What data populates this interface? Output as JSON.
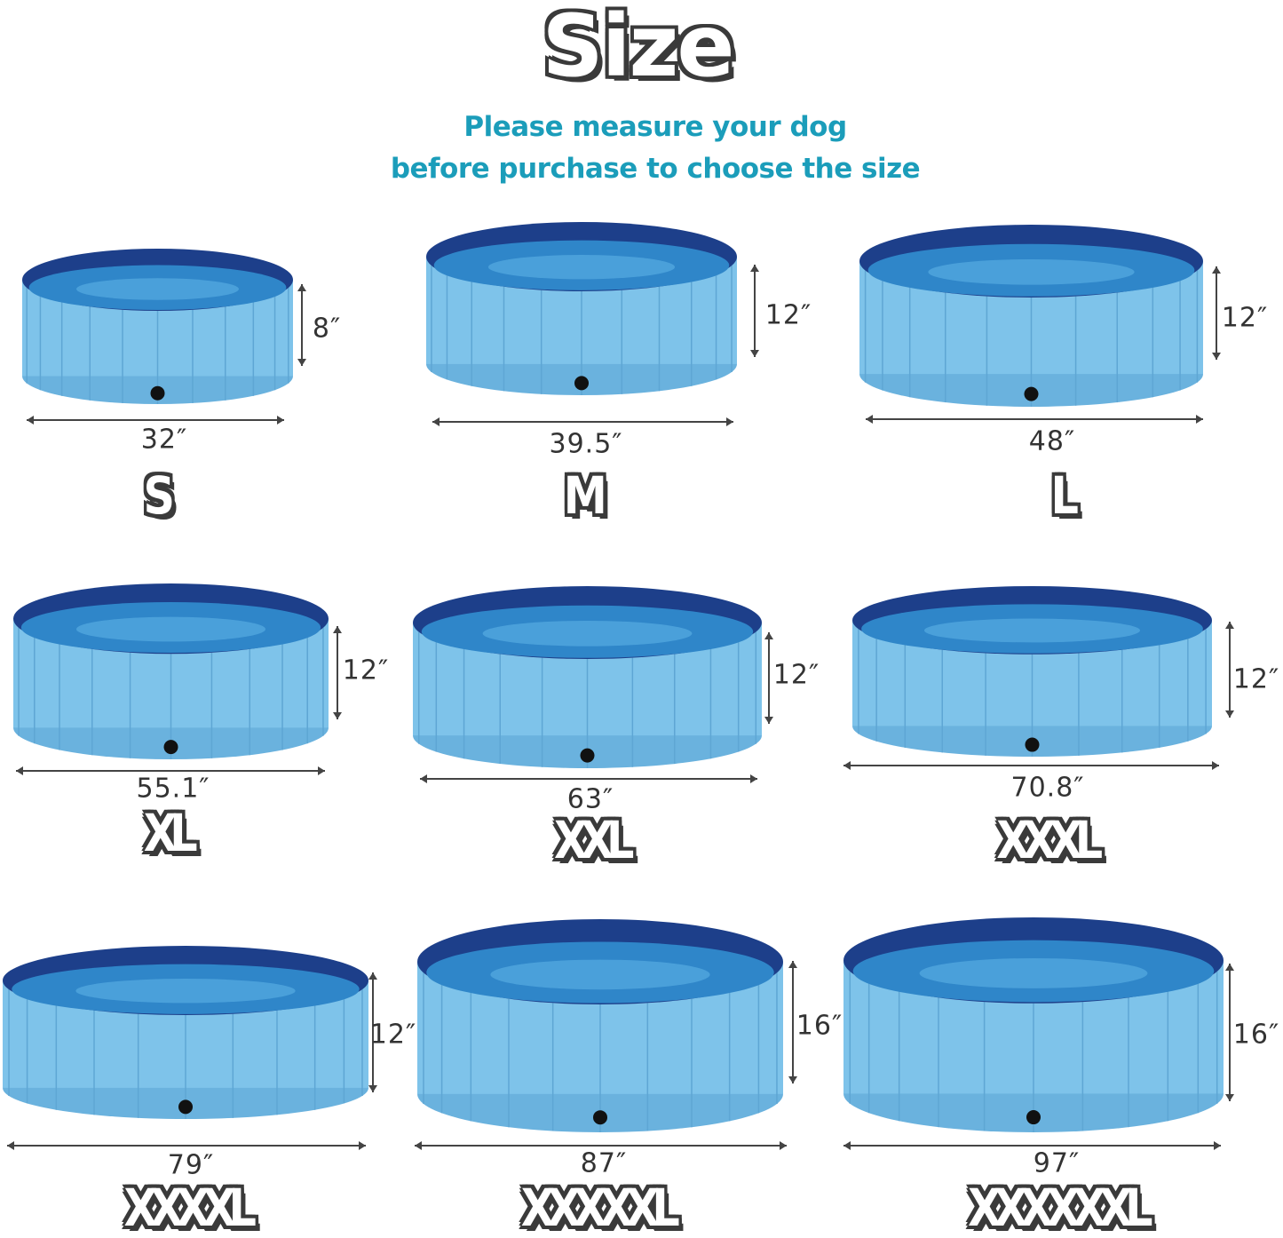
{
  "title": "Size",
  "subtitle": [
    "Please measure your dog",
    "before purchase to choose the size"
  ],
  "colors": {
    "pool_body": "#7ec3ea",
    "pool_rim": "#1d3f8a",
    "water": "#2f86c9",
    "text_accent": "#1b9dba",
    "outline": "#3a3a3a"
  },
  "sizes": [
    {
      "label": "S",
      "diameter": "32″",
      "height": "8″"
    },
    {
      "label": "M",
      "diameter": "39.5″",
      "height": "12″"
    },
    {
      "label": "L",
      "diameter": "48″",
      "height": "12″"
    },
    {
      "label": "XL",
      "diameter": "55.1″",
      "height": "12″"
    },
    {
      "label": "XXL",
      "diameter": "63″",
      "height": "12″"
    },
    {
      "label": "XXXL",
      "diameter": "70.8″",
      "height": "12″"
    },
    {
      "label": "XXXXL",
      "diameter": "79″",
      "height": "12″"
    },
    {
      "label": "XXXXXL",
      "diameter": "87″",
      "height": "16″"
    },
    {
      "label": "XXXXXXL",
      "diameter": "97″",
      "height": "16″"
    }
  ]
}
